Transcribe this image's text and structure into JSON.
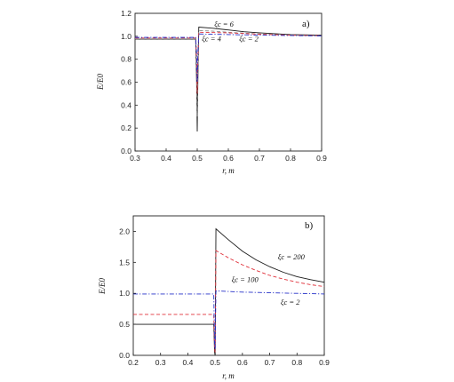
{
  "colors": {
    "black": "#1a1a1a",
    "red": "#e0303a",
    "blue": "#2530c8",
    "gray": "#8a8a8a"
  },
  "chart_data": [
    {
      "type": "line",
      "panel_label": "a)",
      "xlabel": "r, m",
      "ylabel": "E/E0",
      "xlim": [
        0.3,
        0.9
      ],
      "ylim": [
        0.0,
        1.2
      ],
      "xticks": [
        "0.3",
        "0.4",
        "0.5",
        "0.6",
        "0.7",
        "0.8",
        "0.9"
      ],
      "yticks": [
        "0.0",
        "0.2",
        "0.4",
        "0.6",
        "0.8",
        "1.0",
        "1.2"
      ],
      "annotations": [
        {
          "text": "ξc = 6",
          "x": 0.555,
          "y": 1.085
        },
        {
          "text": "ξc = 4",
          "x": 0.515,
          "y": 0.955
        },
        {
          "text": "ξc = 2",
          "x": 0.635,
          "y": 0.955
        }
      ],
      "series": [
        {
          "color": "black",
          "dash": "solid",
          "points": [
            [
              0.3,
              0.975
            ],
            [
              0.495,
              0.975
            ],
            [
              0.498,
              0.6
            ],
            [
              0.5,
              0.17
            ],
            [
              0.502,
              0.6
            ],
            [
              0.505,
              1.08
            ],
            [
              0.55,
              1.07
            ],
            [
              0.6,
              1.055
            ],
            [
              0.65,
              1.04
            ],
            [
              0.7,
              1.03
            ],
            [
              0.8,
              1.015
            ],
            [
              0.9,
              1.01
            ]
          ]
        },
        {
          "color": "gray",
          "dash": "dash",
          "points": [
            [
              0.3,
              0.978
            ],
            [
              0.495,
              0.978
            ],
            [
              0.498,
              0.7
            ],
            [
              0.5,
              0.3
            ],
            [
              0.502,
              0.7
            ],
            [
              0.505,
              1.05
            ],
            [
              0.55,
              1.045
            ],
            [
              0.6,
              1.035
            ],
            [
              0.7,
              1.02
            ],
            [
              0.8,
              1.01
            ],
            [
              0.9,
              1.005
            ]
          ]
        },
        {
          "color": "red",
          "dash": "dash",
          "points": [
            [
              0.3,
              0.985
            ],
            [
              0.495,
              0.985
            ],
            [
              0.498,
              0.8
            ],
            [
              0.5,
              0.5
            ],
            [
              0.502,
              0.8
            ],
            [
              0.505,
              1.035
            ],
            [
              0.6,
              1.03
            ],
            [
              0.7,
              1.018
            ],
            [
              0.8,
              1.01
            ],
            [
              0.9,
              1.005
            ]
          ]
        },
        {
          "color": "blue",
          "dash": "dashdot",
          "points": [
            [
              0.3,
              0.99
            ],
            [
              0.495,
              0.99
            ],
            [
              0.498,
              0.85
            ],
            [
              0.5,
              0.6
            ],
            [
              0.502,
              0.85
            ],
            [
              0.505,
              1.02
            ],
            [
              0.6,
              1.015
            ],
            [
              0.7,
              1.01
            ],
            [
              0.9,
              1.003
            ]
          ]
        }
      ]
    },
    {
      "type": "line",
      "panel_label": "b)",
      "xlabel": "r, m",
      "ylabel": "E/E0",
      "xlim": [
        0.2,
        0.9
      ],
      "ylim": [
        0.0,
        2.25
      ],
      "xticks": [
        "0.2",
        "0.3",
        "0.4",
        "0.5",
        "0.6",
        "0.7",
        "0.8",
        "0.9"
      ],
      "yticks": [
        "0.0",
        "0.5",
        "1.0",
        "1.5",
        "2.0"
      ],
      "annotations": [
        {
          "text": "ξc = 200",
          "x": 0.73,
          "y": 1.55
        },
        {
          "text": "ξc = 100",
          "x": 0.56,
          "y": 1.18
        },
        {
          "text": "ξc = 2",
          "x": 0.74,
          "y": 0.82
        }
      ],
      "series": [
        {
          "color": "black",
          "dash": "solid",
          "points": [
            [
              0.2,
              0.5
            ],
            [
              0.495,
              0.5
            ],
            [
              0.498,
              0.05
            ],
            [
              0.5,
              0.0
            ],
            [
              0.503,
              2.04
            ],
            [
              0.55,
              1.86
            ],
            [
              0.6,
              1.68
            ],
            [
              0.65,
              1.54
            ],
            [
              0.7,
              1.43
            ],
            [
              0.75,
              1.34
            ],
            [
              0.8,
              1.27
            ],
            [
              0.85,
              1.22
            ],
            [
              0.9,
              1.18
            ]
          ]
        },
        {
          "color": "red",
          "dash": "dash",
          "points": [
            [
              0.2,
              0.66
            ],
            [
              0.495,
              0.66
            ],
            [
              0.498,
              0.1
            ],
            [
              0.5,
              0.05
            ],
            [
              0.503,
              1.69
            ],
            [
              0.55,
              1.57
            ],
            [
              0.6,
              1.46
            ],
            [
              0.65,
              1.37
            ],
            [
              0.7,
              1.29
            ],
            [
              0.75,
              1.23
            ],
            [
              0.8,
              1.18
            ],
            [
              0.85,
              1.14
            ],
            [
              0.9,
              1.11
            ]
          ]
        },
        {
          "color": "blue",
          "dash": "dashdot",
          "points": [
            [
              0.2,
              0.99
            ],
            [
              0.495,
              0.99
            ],
            [
              0.498,
              0.2
            ],
            [
              0.5,
              0.1
            ],
            [
              0.503,
              1.04
            ],
            [
              0.6,
              1.02
            ],
            [
              0.7,
              1.01
            ],
            [
              0.8,
              1.0
            ],
            [
              0.9,
              0.99
            ]
          ]
        }
      ]
    }
  ]
}
